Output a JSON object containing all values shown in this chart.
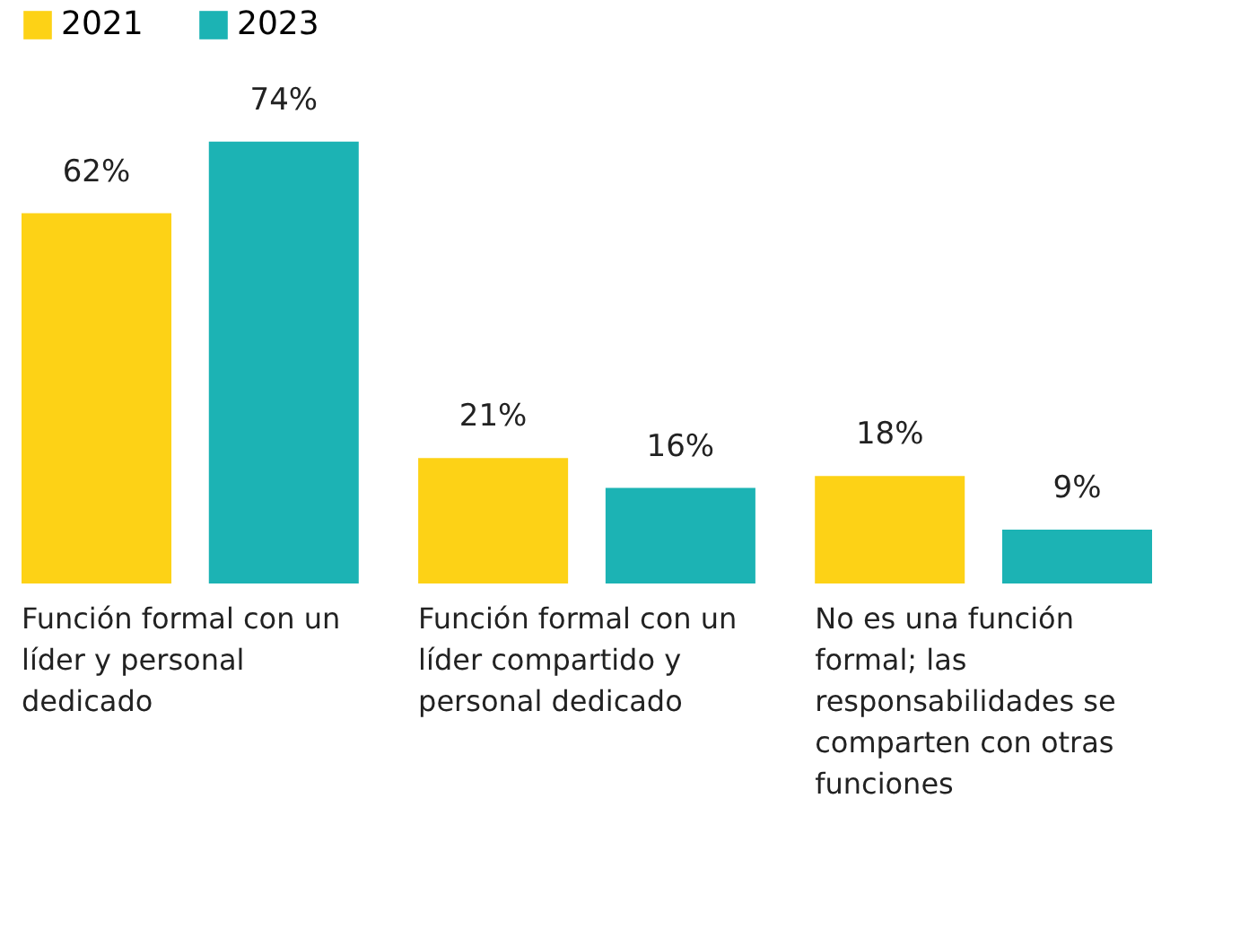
{
  "chart_data": {
    "type": "bar",
    "categories": [
      "Función formal con un líder y personal dedicado",
      "Función formal con un líder compartido y personal dedicado",
      "No es una función formal; las responsabilidades se comparten con otras funciones"
    ],
    "series": [
      {
        "name": "2021",
        "color": "#fdd216",
        "values": [
          62,
          21,
          18
        ],
        "value_labels": [
          "62%",
          "21%",
          "18%"
        ]
      },
      {
        "name": "2023",
        "color": "#1cb3b4",
        "values": [
          74,
          16,
          9
        ],
        "value_labels": [
          "74%",
          "16%",
          "9%"
        ]
      }
    ],
    "legend": "top left"
  }
}
